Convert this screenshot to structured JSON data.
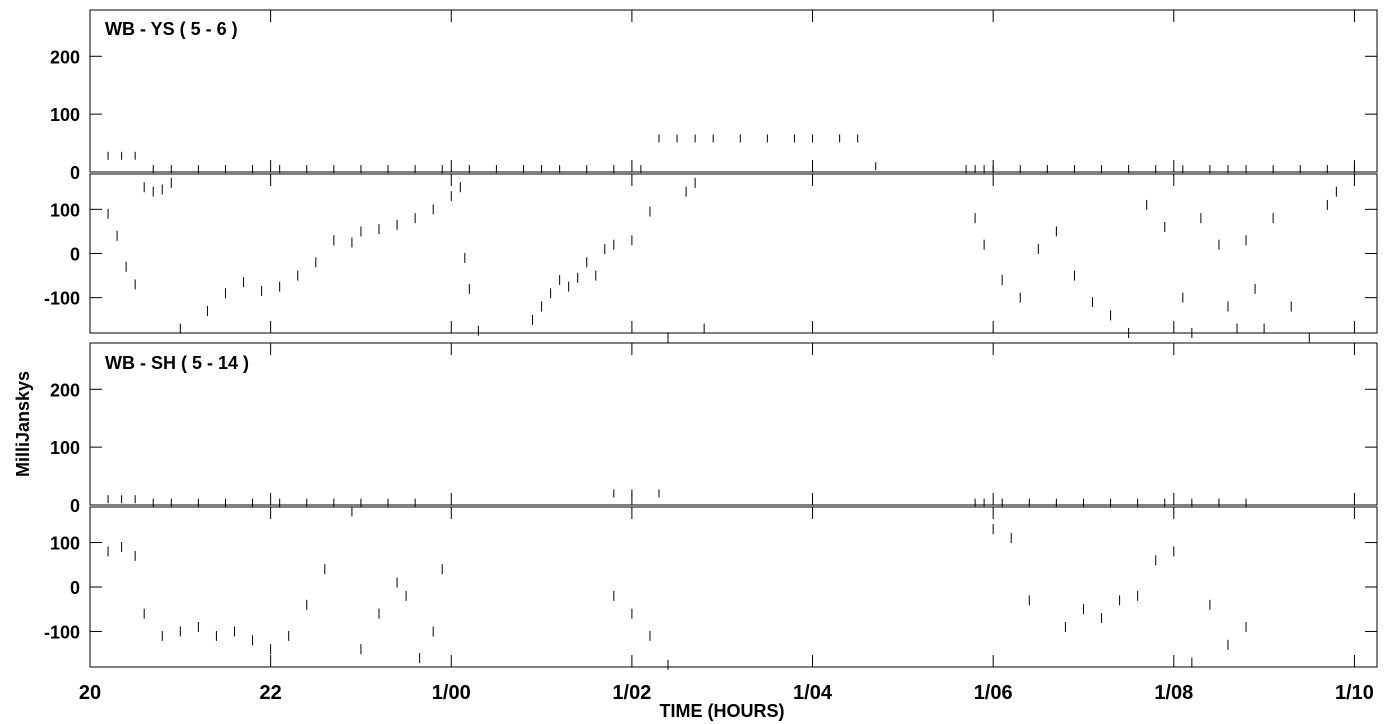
{
  "axis_labels": {
    "ylabel": "MilliJanskys",
    "xlabel": "TIME (HOURS)"
  },
  "x_ticks": [
    "20",
    "22",
    "1/00",
    "1/02",
    "1/04",
    "1/06",
    "1/08",
    "1/10"
  ],
  "chart_data": [
    {
      "type": "scatter",
      "title": "WB - YS ( 5 - 6 )",
      "xlabel": "TIME (HOURS)",
      "ylabel": "MilliJanskys",
      "x_unit": "hours since 20:00 UT",
      "xlim": [
        0,
        14.25
      ],
      "amplitude": {
        "ylim": [
          0,
          280
        ],
        "yticks": [
          0,
          100,
          200
        ],
        "x": [
          0.2,
          0.35,
          0.5,
          0.7,
          0.9,
          1.2,
          1.5,
          1.8,
          2.1,
          2.4,
          2.7,
          3.0,
          3.3,
          3.6,
          3.9,
          4.2,
          4.5,
          4.8,
          5.0,
          5.2,
          5.5,
          5.8,
          6.1,
          6.3,
          6.5,
          6.7,
          6.9,
          7.2,
          7.5,
          7.8,
          8.0,
          8.3,
          8.5,
          8.7,
          9.7,
          9.8,
          9.9,
          10.0,
          10.3,
          10.6,
          10.9,
          11.2,
          11.5,
          11.8,
          12.1,
          12.4,
          12.6,
          12.8,
          13.1,
          13.4,
          13.7,
          14.0
        ],
        "y": [
          28,
          28,
          28,
          5,
          5,
          5,
          5,
          5,
          5,
          5,
          5,
          5,
          5,
          5,
          5,
          5,
          5,
          5,
          5,
          5,
          5,
          5,
          5,
          58,
          58,
          58,
          58,
          58,
          58,
          58,
          58,
          58,
          58,
          10,
          5,
          5,
          5,
          5,
          5,
          5,
          5,
          5,
          5,
          5,
          5,
          5,
          5,
          5,
          5,
          5,
          5,
          5
        ]
      },
      "phase": {
        "ylim": [
          -180,
          180
        ],
        "yticks": [
          -100,
          0,
          100
        ],
        "x": [
          0.2,
          0.3,
          0.4,
          0.5,
          0.6,
          0.7,
          0.8,
          0.9,
          1.0,
          1.3,
          1.5,
          1.7,
          1.9,
          2.1,
          2.3,
          2.5,
          2.7,
          2.9,
          3.0,
          3.2,
          3.4,
          3.6,
          3.8,
          4.0,
          4.1,
          4.15,
          4.2,
          4.3,
          4.9,
          5.0,
          5.1,
          5.2,
          5.3,
          5.4,
          5.5,
          5.6,
          5.7,
          5.8,
          6.0,
          6.2,
          6.4,
          6.6,
          6.7,
          6.8,
          9.8,
          9.9,
          10.1,
          10.3,
          10.5,
          10.7,
          10.9,
          11.1,
          11.3,
          11.5,
          11.7,
          11.9,
          12.1,
          12.2,
          12.3,
          12.5,
          12.6,
          12.7,
          12.8,
          12.9,
          13.0,
          13.1,
          13.3,
          13.5,
          13.7,
          13.8
        ],
        "y": [
          90,
          40,
          -30,
          -70,
          150,
          140,
          145,
          160,
          -170,
          -130,
          -90,
          -65,
          -85,
          -75,
          -50,
          -20,
          30,
          25,
          50,
          55,
          65,
          80,
          100,
          130,
          150,
          -10,
          -80,
          -175,
          -150,
          -120,
          -90,
          -60,
          -75,
          -55,
          -20,
          -50,
          10,
          20,
          30,
          95,
          -190,
          140,
          160,
          -170,
          80,
          20,
          -60,
          -100,
          10,
          50,
          -50,
          -110,
          -140,
          -180,
          110,
          60,
          -100,
          -180,
          80,
          20,
          -120,
          -170,
          30,
          -80,
          -170,
          80,
          -120,
          -190,
          110,
          140
        ]
      }
    },
    {
      "type": "scatter",
      "title": "WB - SH ( 5 - 14 )",
      "xlabel": "TIME (HOURS)",
      "ylabel": "MilliJanskys",
      "x_unit": "hours since 20:00 UT",
      "xlim": [
        0,
        14.25
      ],
      "amplitude": {
        "ylim": [
          0,
          280
        ],
        "yticks": [
          0,
          100,
          200
        ],
        "x": [
          0.2,
          0.35,
          0.5,
          0.7,
          0.9,
          1.2,
          1.5,
          1.8,
          2.1,
          2.4,
          2.7,
          3.0,
          3.3,
          3.6,
          5.8,
          6.0,
          6.3,
          9.8,
          9.9,
          10.1,
          10.4,
          10.7,
          11.0,
          11.3,
          11.6,
          11.9,
          12.2,
          12.5,
          12.8
        ],
        "y": [
          10,
          10,
          10,
          4,
          4,
          4,
          4,
          4,
          4,
          4,
          4,
          4,
          4,
          4,
          20,
          20,
          20,
          4,
          4,
          4,
          4,
          4,
          4,
          4,
          4,
          4,
          4,
          4,
          4
        ]
      },
      "phase": {
        "ylim": [
          -180,
          180
        ],
        "yticks": [
          -100,
          0,
          100
        ],
        "x": [
          0.2,
          0.35,
          0.5,
          0.6,
          0.8,
          1.0,
          1.2,
          1.4,
          1.6,
          1.8,
          2.0,
          2.2,
          2.4,
          2.6,
          2.9,
          3.0,
          3.2,
          3.4,
          3.5,
          3.65,
          3.8,
          3.9,
          5.8,
          6.0,
          6.2,
          6.4,
          10.0,
          10.2,
          10.4,
          10.8,
          11.0,
          11.2,
          11.4,
          11.6,
          11.8,
          12.0,
          12.2,
          12.4,
          12.6,
          12.8
        ],
        "y": [
          80,
          90,
          70,
          -60,
          -110,
          -100,
          -90,
          -110,
          -100,
          -120,
          -140,
          -110,
          -40,
          40,
          170,
          -140,
          -60,
          10,
          -20,
          -160,
          -100,
          40,
          -20,
          -60,
          -110,
          -175,
          130,
          110,
          -30,
          -90,
          -50,
          -70,
          -30,
          -20,
          60,
          80,
          -170,
          -40,
          -130,
          -90
        ]
      }
    }
  ]
}
